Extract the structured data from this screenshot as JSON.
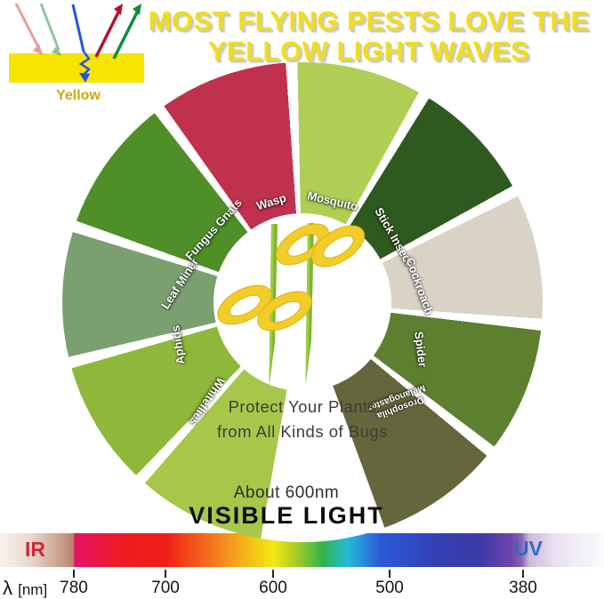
{
  "title": {
    "line1": "MOST FLYING PESTS LOVE THE",
    "line2": "YELLOW LIGHT WAVES"
  },
  "reflection_diagram": {
    "surface_label": "Yellow"
  },
  "wheel": {
    "pests": [
      {
        "name": "Whiteflies",
        "color": "#a7c74a"
      },
      {
        "name": "Aphids",
        "color": "#8eb83a"
      },
      {
        "name": "Leaf Miner",
        "color": "#7aa070"
      },
      {
        "name": "Fungus Gnats",
        "color": "#4f8f28"
      },
      {
        "name": "Wasp",
        "color": "#c0314e"
      },
      {
        "name": "Mosquito",
        "color": "#aecf54"
      },
      {
        "name": "Stick Insect",
        "color": "#2f5a1f"
      },
      {
        "name": "Cockroach",
        "color": "#d9d3c5"
      },
      {
        "name": "Spider",
        "color": "#5d8030"
      },
      {
        "name": "Drosophila Melanogaster",
        "color": "#66663c"
      }
    ]
  },
  "center": {
    "line1": "Protect Your Plants",
    "line2": "from All Kinds of Bugs"
  },
  "spectrum_caption": {
    "wavelength_note": "About 600nm",
    "label": "VISIBLE LIGHT"
  },
  "spectrum": {
    "ir_label": "IR",
    "uv_label": "UV",
    "lambda": "λ",
    "unit": "[nm]",
    "ticks": [
      "780",
      "700",
      "600",
      "500",
      "380"
    ]
  },
  "colors": {
    "title_yellow": "#f2de16",
    "ir_red": "#d42535",
    "uv_blue": "#2e6cbe",
    "trap_yellow": "#f2cd2a",
    "stake_green": "#7cb82a",
    "surface_label_yellow": "#cfa60d"
  }
}
